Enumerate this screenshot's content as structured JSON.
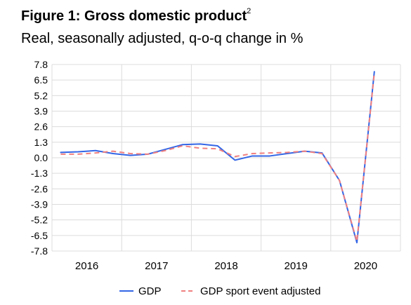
{
  "header": {
    "title": "Figure 1: Gross domestic product",
    "footnote": "2",
    "subtitle": "Real, seasonally adjusted, q-o-q change in %"
  },
  "chart_data": {
    "type": "line",
    "title": "Figure 1: Gross domestic product",
    "subtitle": "Real, seasonally adjusted, q-o-q change in %",
    "ylim": [
      -7.8,
      7.8
    ],
    "y_ticks": [
      "7.8",
      "6.5",
      "5.2",
      "3.9",
      "2.6",
      "1.3",
      "0.0",
      "-1.3",
      "-2.6",
      "-3.9",
      "-5.2",
      "-6.5",
      "-7.8"
    ],
    "year_labels": [
      "2016",
      "2017",
      "2018",
      "2019",
      "2020"
    ],
    "x": [
      "2016Q1",
      "2016Q2",
      "2016Q3",
      "2016Q4",
      "2017Q1",
      "2017Q2",
      "2017Q3",
      "2017Q4",
      "2018Q1",
      "2018Q2",
      "2018Q3",
      "2018Q4",
      "2019Q1",
      "2019Q2",
      "2019Q3",
      "2019Q4",
      "2020Q1",
      "2020Q2",
      "2020Q3"
    ],
    "grid": true,
    "legend_position": "bottom",
    "series": [
      {
        "name": "GDP",
        "color": "#3366e6",
        "style": "solid",
        "values": [
          0.45,
          0.5,
          0.6,
          0.35,
          0.2,
          0.3,
          0.7,
          1.1,
          1.15,
          1.0,
          -0.2,
          0.15,
          0.15,
          0.35,
          0.55,
          0.4,
          -1.9,
          -7.1,
          7.2
        ]
      },
      {
        "name": "GDP sport event adjusted",
        "color": "#f08080",
        "style": "dashed",
        "values": [
          0.3,
          0.3,
          0.4,
          0.55,
          0.35,
          0.3,
          0.6,
          1.0,
          0.8,
          0.75,
          0.1,
          0.35,
          0.4,
          0.45,
          0.55,
          0.35,
          -1.9,
          -7.0,
          7.1
        ]
      }
    ]
  }
}
